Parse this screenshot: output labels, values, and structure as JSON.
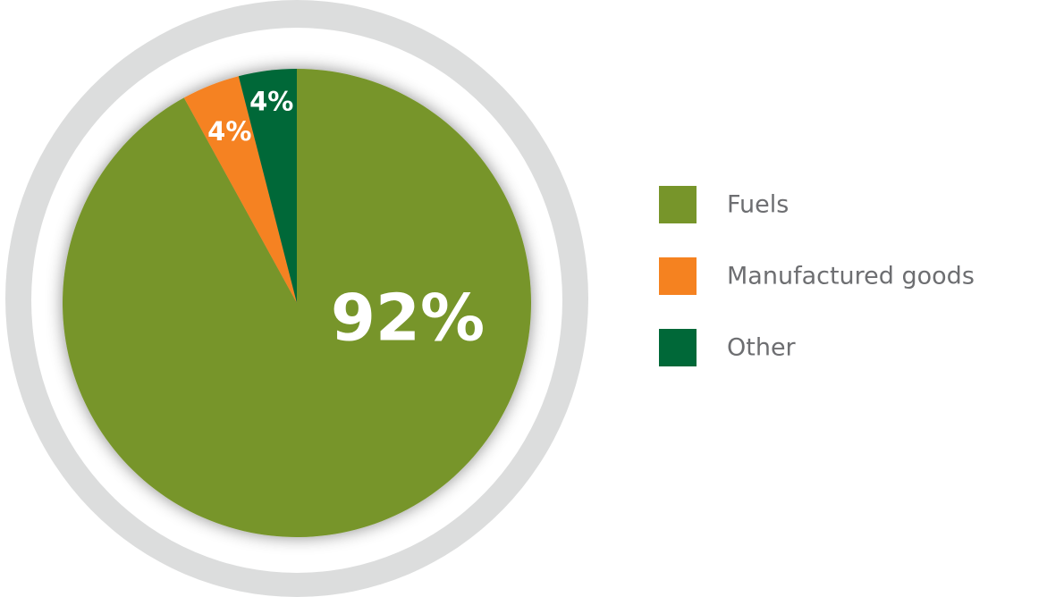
{
  "chart_data": {
    "type": "pie",
    "categories": [
      "Fuels",
      "Manufactured goods",
      "Other"
    ],
    "values": [
      92,
      4,
      4
    ],
    "value_labels": [
      "92%",
      "4%",
      "4%"
    ],
    "colors": [
      "#77952a",
      "#f58220",
      "#006838"
    ],
    "legend": "right"
  }
}
